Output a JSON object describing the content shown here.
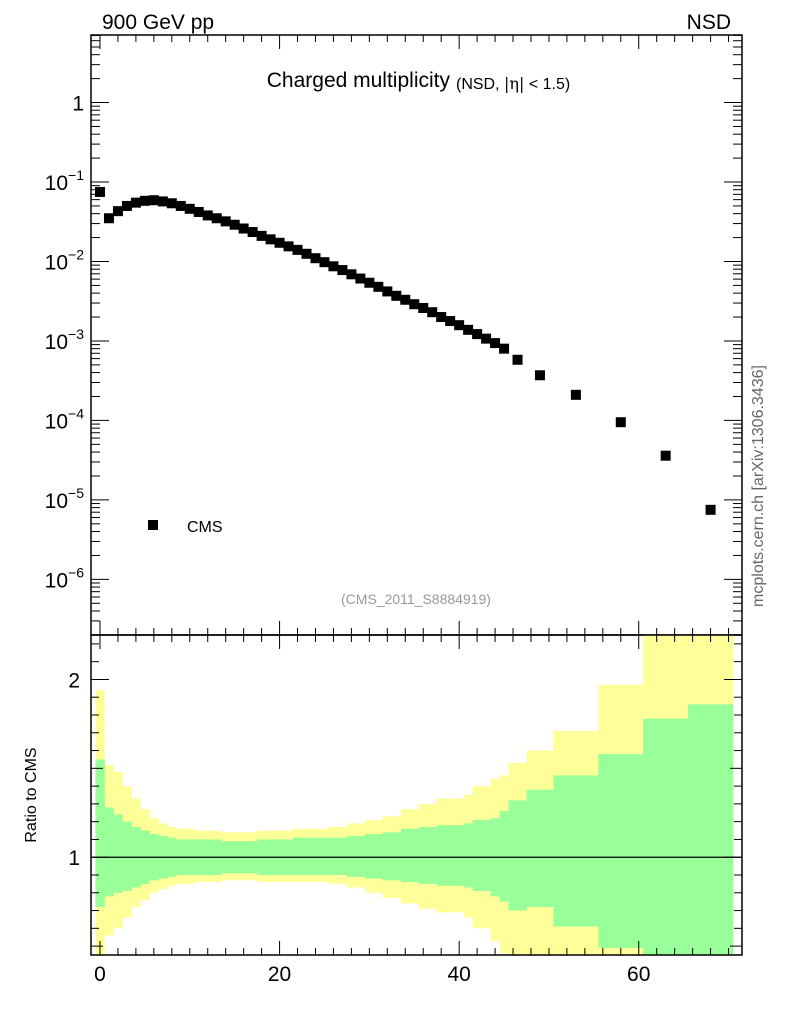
{
  "header": {
    "left": "900 GeV pp",
    "right": "NSD"
  },
  "side_label": "mcplots.cern.ch [arXiv:1306.3436]",
  "chart_data": [
    {
      "type": "scatter",
      "title": "Charged multiplicity",
      "subtitle": "(NSD, |η| < 1.5)",
      "subtitle_parts": {
        "open": "(NSD, ",
        "eta": "|η|",
        "close": " < 1.5)"
      },
      "reference": "(CMS_2011_S8884919)",
      "legend": {
        "position": "bottom-left",
        "entries": [
          "CMS"
        ]
      },
      "xlim": [
        -1,
        71.5
      ],
      "ylim_log10": [
        -6.7,
        0.85
      ],
      "yscale": "log",
      "xticks": [
        0,
        20,
        40,
        60
      ],
      "ytick_labels": [
        {
          "value": 1,
          "base": "1",
          "exp": ""
        },
        {
          "value": 0.1,
          "base": "10",
          "exp": "−1"
        },
        {
          "value": 0.01,
          "base": "10",
          "exp": "−2"
        },
        {
          "value": 0.001,
          "base": "10",
          "exp": "−3"
        },
        {
          "value": 0.0001,
          "base": "10",
          "exp": "−4"
        },
        {
          "value": 1e-05,
          "base": "10",
          "exp": "−5"
        },
        {
          "value": 1e-06,
          "base": "10",
          "exp": "−6"
        }
      ],
      "series": [
        {
          "name": "CMS",
          "color": "#000000",
          "points": [
            [
              0,
              0.075
            ],
            [
              1,
              0.035
            ],
            [
              2,
              0.043
            ],
            [
              3,
              0.05
            ],
            [
              4,
              0.055
            ],
            [
              5,
              0.058
            ],
            [
              6,
              0.059
            ],
            [
              7,
              0.057
            ],
            [
              8,
              0.054
            ],
            [
              9,
              0.05
            ],
            [
              10,
              0.046
            ],
            [
              11,
              0.042
            ],
            [
              12,
              0.038
            ],
            [
              13,
              0.035
            ],
            [
              14,
              0.032
            ],
            [
              15,
              0.029
            ],
            [
              16,
              0.026
            ],
            [
              17,
              0.0235
            ],
            [
              18,
              0.021
            ],
            [
              19,
              0.019
            ],
            [
              20,
              0.0172
            ],
            [
              21,
              0.0155
            ],
            [
              22,
              0.014
            ],
            [
              23,
              0.0125
            ],
            [
              24,
              0.011
            ],
            [
              25,
              0.0098
            ],
            [
              26,
              0.0087
            ],
            [
              27,
              0.0078
            ],
            [
              28,
              0.0069
            ],
            [
              29,
              0.0061
            ],
            [
              30,
              0.0054
            ],
            [
              31,
              0.0048
            ],
            [
              32,
              0.0042
            ],
            [
              33,
              0.0037
            ],
            [
              34,
              0.0033
            ],
            [
              35,
              0.0029
            ],
            [
              36,
              0.0026
            ],
            [
              37,
              0.0023
            ],
            [
              38,
              0.002
            ],
            [
              39,
              0.00178
            ],
            [
              40,
              0.00158
            ],
            [
              41,
              0.00138
            ],
            [
              42,
              0.00122
            ],
            [
              43,
              0.00107
            ],
            [
              44,
              0.00094
            ],
            [
              45,
              0.0008
            ],
            [
              46.5,
              0.00058
            ],
            [
              49,
              0.00037
            ],
            [
              53,
              0.00021
            ],
            [
              58,
              9.5e-05
            ],
            [
              63,
              3.6e-05
            ],
            [
              68,
              7.5e-06
            ]
          ]
        }
      ]
    },
    {
      "type": "area",
      "ylabel": "Ratio to CMS",
      "xlim": [
        -1,
        71.5
      ],
      "ylim": [
        0.45,
        2.25
      ],
      "yticks": [
        1,
        2
      ],
      "xticks": [
        0,
        20,
        40,
        60
      ],
      "reference_line": 1,
      "colors": {
        "inner": "#99ff99",
        "outer": "#ffff99"
      },
      "bands": [
        {
          "x0": -0.5,
          "x1": 0.5,
          "in_lo": 0.72,
          "in_hi": 1.55,
          "out_lo": 0.4,
          "out_hi": 1.94
        },
        {
          "x0": 0.5,
          "x1": 1.5,
          "in_lo": 0.78,
          "in_hi": 1.28,
          "out_lo": 0.56,
          "out_hi": 1.52
        },
        {
          "x0": 1.5,
          "x1": 2.5,
          "in_lo": 0.8,
          "in_hi": 1.24,
          "out_lo": 0.6,
          "out_hi": 1.48
        },
        {
          "x0": 2.5,
          "x1": 3.5,
          "in_lo": 0.81,
          "in_hi": 1.2,
          "out_lo": 0.66,
          "out_hi": 1.4
        },
        {
          "x0": 3.5,
          "x1": 4.5,
          "in_lo": 0.83,
          "in_hi": 1.17,
          "out_lo": 0.72,
          "out_hi": 1.33
        },
        {
          "x0": 4.5,
          "x1": 5.5,
          "in_lo": 0.85,
          "in_hi": 1.15,
          "out_lo": 0.76,
          "out_hi": 1.27
        },
        {
          "x0": 5.5,
          "x1": 6.5,
          "in_lo": 0.87,
          "in_hi": 1.13,
          "out_lo": 0.8,
          "out_hi": 1.22
        },
        {
          "x0": 6.5,
          "x1": 7.5,
          "in_lo": 0.88,
          "in_hi": 1.12,
          "out_lo": 0.82,
          "out_hi": 1.19
        },
        {
          "x0": 7.5,
          "x1": 8.5,
          "in_lo": 0.89,
          "in_hi": 1.11,
          "out_lo": 0.84,
          "out_hi": 1.17
        },
        {
          "x0": 8.5,
          "x1": 10.5,
          "in_lo": 0.9,
          "in_hi": 1.1,
          "out_lo": 0.85,
          "out_hi": 1.16
        },
        {
          "x0": 10.5,
          "x1": 13.5,
          "in_lo": 0.9,
          "in_hi": 1.1,
          "out_lo": 0.86,
          "out_hi": 1.15
        },
        {
          "x0": 13.5,
          "x1": 17.5,
          "in_lo": 0.91,
          "in_hi": 1.09,
          "out_lo": 0.87,
          "out_hi": 1.14
        },
        {
          "x0": 17.5,
          "x1": 21.5,
          "in_lo": 0.9,
          "in_hi": 1.1,
          "out_lo": 0.86,
          "out_hi": 1.15
        },
        {
          "x0": 21.5,
          "x1": 25.5,
          "in_lo": 0.9,
          "in_hi": 1.11,
          "out_lo": 0.86,
          "out_hi": 1.16
        },
        {
          "x0": 25.5,
          "x1": 27.5,
          "in_lo": 0.9,
          "in_hi": 1.11,
          "out_lo": 0.85,
          "out_hi": 1.17
        },
        {
          "x0": 27.5,
          "x1": 29.5,
          "in_lo": 0.89,
          "in_hi": 1.12,
          "out_lo": 0.83,
          "out_hi": 1.19
        },
        {
          "x0": 29.5,
          "x1": 31.5,
          "in_lo": 0.88,
          "in_hi": 1.13,
          "out_lo": 0.8,
          "out_hi": 1.21
        },
        {
          "x0": 31.5,
          "x1": 33.5,
          "in_lo": 0.87,
          "in_hi": 1.14,
          "out_lo": 0.77,
          "out_hi": 1.23
        },
        {
          "x0": 33.5,
          "x1": 35.5,
          "in_lo": 0.86,
          "in_hi": 1.16,
          "out_lo": 0.74,
          "out_hi": 1.27
        },
        {
          "x0": 35.5,
          "x1": 37.5,
          "in_lo": 0.85,
          "in_hi": 1.17,
          "out_lo": 0.71,
          "out_hi": 1.3
        },
        {
          "x0": 37.5,
          "x1": 40.5,
          "in_lo": 0.84,
          "in_hi": 1.18,
          "out_lo": 0.69,
          "out_hi": 1.33
        },
        {
          "x0": 40.5,
          "x1": 41.5,
          "in_lo": 0.83,
          "in_hi": 1.19,
          "out_lo": 0.66,
          "out_hi": 1.35
        },
        {
          "x0": 41.5,
          "x1": 43.5,
          "in_lo": 0.81,
          "in_hi": 1.21,
          "out_lo": 0.6,
          "out_hi": 1.4
        },
        {
          "x0": 43.5,
          "x1": 44.5,
          "in_lo": 0.78,
          "in_hi": 1.22,
          "out_lo": 0.53,
          "out_hi": 1.44
        },
        {
          "x0": 44.5,
          "x1": 45.5,
          "in_lo": 0.75,
          "in_hi": 1.26,
          "out_lo": 0.46,
          "out_hi": 1.46
        },
        {
          "x0": 45.5,
          "x1": 47.5,
          "in_lo": 0.7,
          "in_hi": 1.32,
          "out_lo": 0.28,
          "out_hi": 1.53
        },
        {
          "x0": 47.5,
          "x1": 50.5,
          "in_lo": 0.72,
          "in_hi": 1.38,
          "out_lo": 0.39,
          "out_hi": 1.6
        },
        {
          "x0": 50.5,
          "x1": 55.5,
          "in_lo": 0.61,
          "in_hi": 1.46,
          "out_lo": 0.19,
          "out_hi": 1.71
        },
        {
          "x0": 55.5,
          "x1": 60.5,
          "in_lo": 0.49,
          "in_hi": 1.58,
          "out_lo": 0.1,
          "out_hi": 1.97
        },
        {
          "x0": 60.5,
          "x1": 65.5,
          "in_lo": 0.28,
          "in_hi": 1.78,
          "out_lo": 0.1,
          "out_hi": 2.3
        },
        {
          "x0": 65.5,
          "x1": 70.5,
          "in_lo": 0.2,
          "in_hi": 1.86,
          "out_lo": 0.1,
          "out_hi": 2.3
        }
      ]
    }
  ]
}
